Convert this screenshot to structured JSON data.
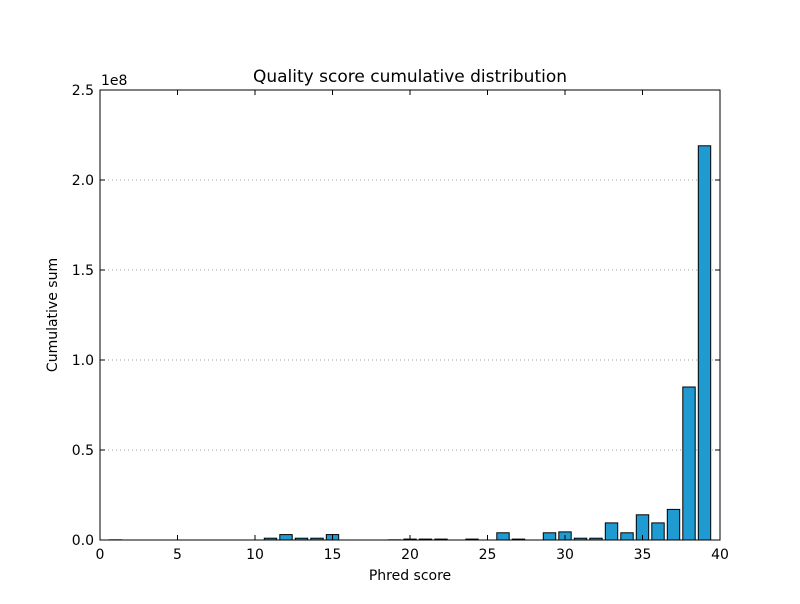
{
  "chart_data": {
    "type": "bar",
    "title": "Quality score cumulative distribution",
    "xlabel": "Phred score",
    "ylabel": "Cumulative sum",
    "y_scale_label": "1e8",
    "xlim": [
      0,
      40
    ],
    "ylim": [
      0,
      2.5
    ],
    "y_multiplier": 100000000,
    "xticks": [
      0,
      5,
      10,
      15,
      20,
      25,
      30,
      35,
      40
    ],
    "xtick_labels": [
      "0",
      "5",
      "10",
      "15",
      "20",
      "25",
      "30",
      "35",
      "40"
    ],
    "yticks": [
      0,
      0.5,
      1.0,
      1.5,
      2.0,
      2.5
    ],
    "ytick_labels": [
      "0.0",
      "0.5",
      "1.0",
      "1.5",
      "2.0",
      "2.5"
    ],
    "grid": "y-dotted",
    "bar_color": "#1f9bd1",
    "edge_color": "#000000",
    "bar_width": 0.8,
    "x": [
      1,
      2,
      3,
      4,
      5,
      6,
      7,
      8,
      9,
      10,
      11,
      12,
      13,
      14,
      15,
      16,
      17,
      18,
      19,
      20,
      21,
      22,
      23,
      24,
      25,
      26,
      27,
      28,
      29,
      30,
      31,
      32,
      33,
      34,
      35,
      36,
      37,
      38,
      39
    ],
    "values": [
      0.001,
      0,
      0,
      0,
      0,
      0,
      0,
      0,
      0,
      0,
      0.01,
      0.03,
      0.01,
      0.01,
      0.03,
      0,
      0,
      0,
      0.001,
      0.005,
      0.005,
      0.005,
      0,
      0.005,
      0,
      0.04,
      0.005,
      0,
      0.04,
      0.045,
      0.01,
      0.01,
      0.095,
      0.04,
      0.14,
      0.095,
      0.17,
      0.85,
      2.19
    ]
  }
}
